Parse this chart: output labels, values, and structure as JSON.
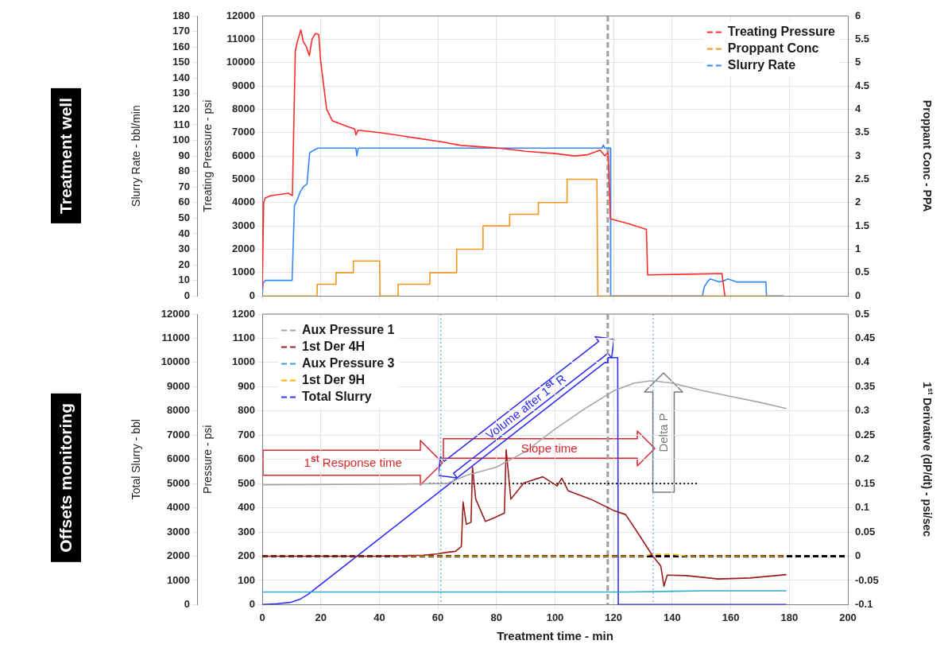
{
  "chart_data": [
    {
      "type": "line",
      "title": "Treatment well",
      "ylabel": "Treating Pressure - psi",
      "y2label": "Proppant Conc - PPA",
      "y3label": "Slurry Rate - bbl/min",
      "xlim": [
        0,
        200
      ],
      "xticks": [
        0,
        20,
        40,
        60,
        80,
        100,
        120,
        140,
        160,
        180,
        200
      ],
      "ylim": [
        0,
        12000
      ],
      "yticks": [
        0,
        1000,
        2000,
        3000,
        4000,
        5000,
        6000,
        7000,
        8000,
        9000,
        10000,
        11000,
        12000
      ],
      "y2lim": [
        0,
        6
      ],
      "y2ticks": [
        0,
        0.5,
        1,
        1.5,
        2,
        2.5,
        3,
        3.5,
        4,
        4.5,
        5,
        5.5,
        6
      ],
      "y3lim": [
        0,
        180
      ],
      "y3ticks": [
        0,
        10,
        20,
        30,
        40,
        50,
        60,
        70,
        80,
        90,
        100,
        110,
        120,
        130,
        140,
        150,
        160,
        170,
        180
      ],
      "grid": true,
      "legend": "top right",
      "tick_labels": "y",
      "ref_lines": [
        {
          "axis": "x",
          "value": 118,
          "color": "#a0a0a0",
          "line_style": "dashed"
        }
      ],
      "series": [
        {
          "name": "Treating Pressure",
          "color": "#ff2a2a",
          "x": [
            0,
            0.5,
            1,
            3,
            6,
            9,
            10.3,
            11.3,
            12,
            13.2,
            14,
            15,
            16.1,
            17,
            18.2,
            19.3,
            20,
            21,
            22,
            24,
            29.4,
            31.6,
            32,
            32.7,
            40.1,
            50.8,
            61.5,
            67.9,
            79.5,
            90,
            100,
            106.7,
            111,
            115.4,
            117,
            118.1,
            118.9,
            125,
            131.2,
            131.6,
            145,
            157,
            158
          ],
          "values": [
            300,
            4000,
            4200,
            4300,
            4350,
            4400,
            4300,
            10500,
            10900,
            11400,
            10900,
            10700,
            10300,
            11000,
            11250,
            11200,
            10000,
            9000,
            8000,
            7500,
            7250,
            7150,
            6900,
            7100,
            7000,
            6800,
            6600,
            6450,
            6350,
            6200,
            6100,
            6000,
            6050,
            6250,
            6000,
            6150,
            3300,
            3100,
            2850,
            900,
            930,
            960,
            0
          ]
        },
        {
          "name": "Proppant Conc",
          "color": "#f7941d",
          "axis": "y2",
          "x": [
            0,
            18.7,
            18.8,
            25.1,
            25.2,
            31,
            31.1,
            40.1,
            40.2,
            46.3,
            46.4,
            57.2,
            57.3,
            66.3,
            66.4,
            75.3,
            75.4,
            84.4,
            84.5,
            94.2,
            94.3,
            104,
            104.1,
            114.3,
            114.6,
            178
          ],
          "values": [
            0,
            0,
            0.25,
            0.25,
            0.5,
            0.5,
            0.75,
            0.75,
            0,
            0,
            0.25,
            0.25,
            0.5,
            0.5,
            1,
            1,
            1.5,
            1.5,
            1.75,
            1.75,
            2,
            2,
            2.5,
            2.5,
            0,
            0
          ]
        },
        {
          "name": "Slurry Rate",
          "color": "#3388ff",
          "axis": "y3",
          "x": [
            0,
            0.3,
            1,
            10.2,
            11,
            12,
            13,
            14,
            15.3,
            16.2,
            17,
            19,
            32,
            32.3,
            32.8,
            116,
            116.5,
            117,
            118.9,
            119,
            150.3,
            151,
            152,
            153,
            156,
            158,
            159,
            162,
            165,
            172,
            172.2,
            178
          ],
          "values": [
            0,
            8,
            10,
            10,
            58,
            62,
            67,
            70,
            72,
            92,
            93,
            95,
            95,
            90,
            95,
            95,
            97,
            95,
            95,
            0,
            0,
            6,
            9,
            11,
            9,
            10,
            11,
            9,
            9,
            9,
            0,
            0
          ]
        }
      ]
    },
    {
      "type": "line",
      "title": "Offsets monitoring",
      "xlabel": "Treatment time - min",
      "ylabel": "Pressure - psi",
      "y2label": "1$^{st}$ Derivative (dP/dt) - psi/sec",
      "y3label": "Total Slurry - bbl",
      "xlim": [
        0,
        200
      ],
      "xticks": [
        0,
        20,
        40,
        60,
        80,
        100,
        120,
        140,
        160,
        180,
        200
      ],
      "ylim": [
        0,
        1200
      ],
      "yticks": [
        0,
        100,
        200,
        300,
        400,
        500,
        600,
        700,
        800,
        900,
        1000,
        1100,
        1200
      ],
      "y2lim": [
        -0.1,
        0.5
      ],
      "y2ticks": [
        -0.1,
        -0.05,
        0,
        0.05,
        0.1,
        0.15,
        0.2,
        0.25,
        0.3,
        0.35,
        0.4,
        0.45,
        0.5
      ],
      "y3lim": [
        0,
        12000
      ],
      "y3ticks": [
        0,
        1000,
        2000,
        3000,
        4000,
        5000,
        6000,
        7000,
        8000,
        9000,
        10000,
        11000,
        12000
      ],
      "grid": true,
      "legend": "top left",
      "ref_lines": [
        {
          "axis": "x",
          "value": 118,
          "color": "#a0a0a0",
          "line_style": "dashed"
        },
        {
          "axis": "x",
          "value": 61,
          "color": "#3399dd",
          "line_style": "dotted"
        },
        {
          "axis": "x",
          "value": 133.5,
          "color": "#3399dd",
          "line_style": "dotted"
        },
        {
          "axis": "y2",
          "value": 0,
          "color": "#000000",
          "line_style": "dashed"
        }
      ],
      "annotations": [
        "1$^{st}$ Response time",
        "Slope time",
        "Volume after 1$^{st}$ R",
        "Delta P"
      ],
      "series": [
        {
          "name": "Aux Pressure 1",
          "color": "#a6a6a6",
          "x": [
            0,
            40,
            63,
            70,
            80,
            90,
            100,
            110,
            120,
            127,
            133,
            140,
            150,
            160,
            170,
            179
          ],
          "values": [
            495,
            497,
            500,
            535,
            568,
            633,
            725,
            808,
            883,
            915,
            925,
            915,
            885,
            860,
            835,
            810
          ]
        },
        {
          "name": "1st Der 4H",
          "color": "#9b1c1c",
          "axis": "y2",
          "x": [
            0,
            20,
            40,
            55,
            60,
            63,
            66,
            68,
            68.6,
            69.7,
            71.3,
            71.8,
            72.9,
            76.2,
            79.5,
            82.7,
            83.3,
            84.9,
            89.3,
            95.8,
            100.7,
            102.3,
            104.5,
            112.1,
            119.8,
            124.1,
            128.5,
            133.4,
            136.1,
            137.2,
            138.3,
            144.8,
            155.7,
            166.6,
            179
          ],
          "values": [
            0,
            0,
            0,
            0.002,
            0.005,
            0.008,
            0.01,
            0.02,
            0.112,
            0.066,
            0.07,
            0.184,
            0.118,
            0.072,
            0.08,
            0.089,
            0.22,
            0.118,
            0.151,
            0.164,
            0.145,
            0.161,
            0.135,
            0.118,
            0.095,
            0.086,
            0.046,
            0,
            -0.02,
            -0.062,
            -0.039,
            -0.04,
            -0.047,
            -0.045,
            -0.038
          ]
        },
        {
          "name": "Aux Pressure 3",
          "color": "#33aacc",
          "x": [
            0,
            125,
            140,
            150,
            179
          ],
          "values": [
            52,
            52,
            55,
            57,
            57
          ]
        },
        {
          "name": "1st Der 9H",
          "color": "#ffb000",
          "axis": "y2",
          "line_style": "dashed",
          "x": [
            0,
            130,
            133,
            140,
            145,
            178
          ],
          "values": [
            0,
            0,
            0.004,
            0.004,
            0,
            0
          ]
        },
        {
          "name": "Total Slurry",
          "color": "#2e2eff",
          "axis": "y3",
          "x": [
            0,
            5,
            10,
            13,
            15.6,
            117,
            118,
            118.1,
            121.4,
            121.6,
            179
          ],
          "values": [
            0,
            40,
            100,
            230,
            420,
            10000,
            10000,
            10200,
            10200,
            0,
            0
          ]
        },
        {
          "color": "#000000",
          "line_style": "dotted",
          "x": [
            57,
            149
          ],
          "values": [
            500,
            500
          ]
        }
      ]
    }
  ]
}
